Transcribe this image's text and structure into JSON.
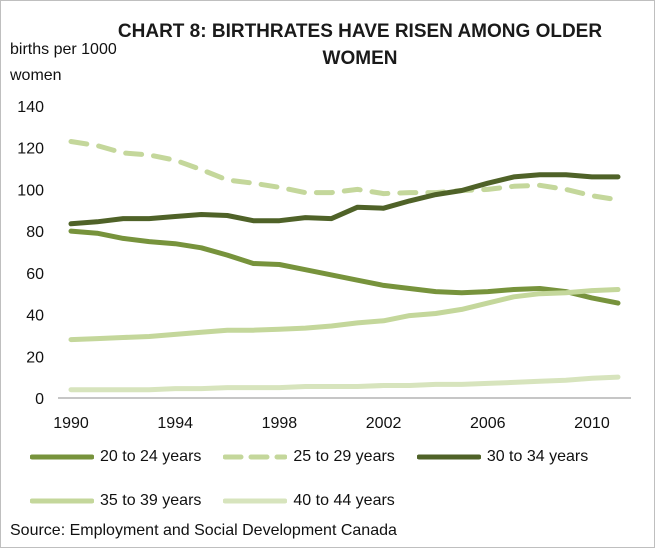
{
  "chart_data": {
    "type": "line",
    "title": "CHART 8: BIRTHRATES HAVE RISEN AMONG OLDER WOMEN",
    "ylabel": "births per 1000 women",
    "xlabel": "",
    "ylim": [
      0,
      140
    ],
    "yticks": [
      "0",
      "20",
      "40",
      "60",
      "80",
      "100",
      "120",
      "140"
    ],
    "xticks": [
      "1990",
      "1994",
      "1998",
      "2002",
      "2006",
      "2010"
    ],
    "x": [
      1990,
      1991,
      1992,
      1993,
      1994,
      1995,
      1996,
      1997,
      1998,
      1999,
      2000,
      2001,
      2002,
      2003,
      2004,
      2005,
      2006,
      2007,
      2008,
      2009,
      2010,
      2011
    ],
    "series": [
      {
        "name": "20 to 24 years",
        "color": "#77933c",
        "dash": false,
        "values": [
          80,
          79,
          76.5,
          75,
          74,
          72,
          68.5,
          64.5,
          64,
          61.5,
          59,
          56.5,
          54,
          52.5,
          51,
          50.5,
          51,
          52,
          52.5,
          51,
          48,
          45.5
        ]
      },
      {
        "name": "25 to 29 years",
        "color": "#c4d79b",
        "dash": true,
        "values": [
          123,
          121,
          117.5,
          116.5,
          114,
          109.5,
          104.5,
          103,
          101,
          98.5,
          98.5,
          100,
          98,
          98.5,
          98.5,
          99.5,
          100,
          101.5,
          102,
          100,
          97,
          95
        ]
      },
      {
        "name": "30 to 34 years",
        "color": "#4f6228",
        "dash": false,
        "values": [
          83.5,
          84.5,
          86,
          86,
          87,
          88,
          87.5,
          85,
          85,
          86.5,
          86,
          91.5,
          91,
          94.5,
          97.5,
          99.5,
          103,
          106,
          107,
          107,
          106,
          106
        ]
      },
      {
        "name": "35 to 39 years",
        "color": "#c4d79b",
        "dash": false,
        "values": [
          28,
          28.5,
          29,
          29.5,
          30.5,
          31.5,
          32.5,
          32.5,
          33,
          33.5,
          34.5,
          36,
          37,
          39.5,
          40.5,
          42.5,
          45.5,
          48.5,
          50,
          50.5,
          51.5,
          52
        ]
      },
      {
        "name": "40 to 44 years",
        "color": "#d7e4bd",
        "dash": false,
        "values": [
          4,
          4,
          4,
          4,
          4.5,
          4.5,
          5,
          5,
          5,
          5.5,
          5.5,
          5.5,
          6,
          6,
          6.5,
          6.5,
          7,
          7.5,
          8,
          8.5,
          9.5,
          10
        ]
      }
    ],
    "grid": false,
    "legend_position": "bottom"
  },
  "source": "Source: Employment and Social Development Canada"
}
